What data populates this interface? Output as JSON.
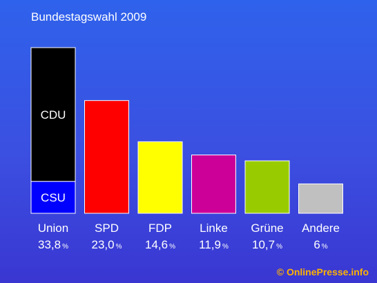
{
  "chart_data": {
    "type": "bar",
    "title": "Bundestagswahl 2009",
    "categories": [
      "Union",
      "SPD",
      "FDP",
      "Linke",
      "Grüne",
      "Andere"
    ],
    "values": [
      33.8,
      23.0,
      14.6,
      11.9,
      10.7,
      6
    ],
    "value_labels": [
      "33,8",
      "23,0",
      "14,6",
      "11,9",
      "10,7",
      "6"
    ],
    "unit": "%",
    "colors": [
      "#000000",
      "#ff0000",
      "#ffff00",
      "#cc0099",
      "#99cc00",
      "#c0c0c0"
    ],
    "stacked_first_bar": {
      "segments": [
        {
          "label": "CDU",
          "value": 27.3,
          "color": "#000000"
        },
        {
          "label": "CSU",
          "value": 6.5,
          "color": "#0000ff"
        }
      ]
    },
    "ylim": [
      0,
      33.8
    ],
    "grid": false
  },
  "footer": "© OnlinePresse.info"
}
